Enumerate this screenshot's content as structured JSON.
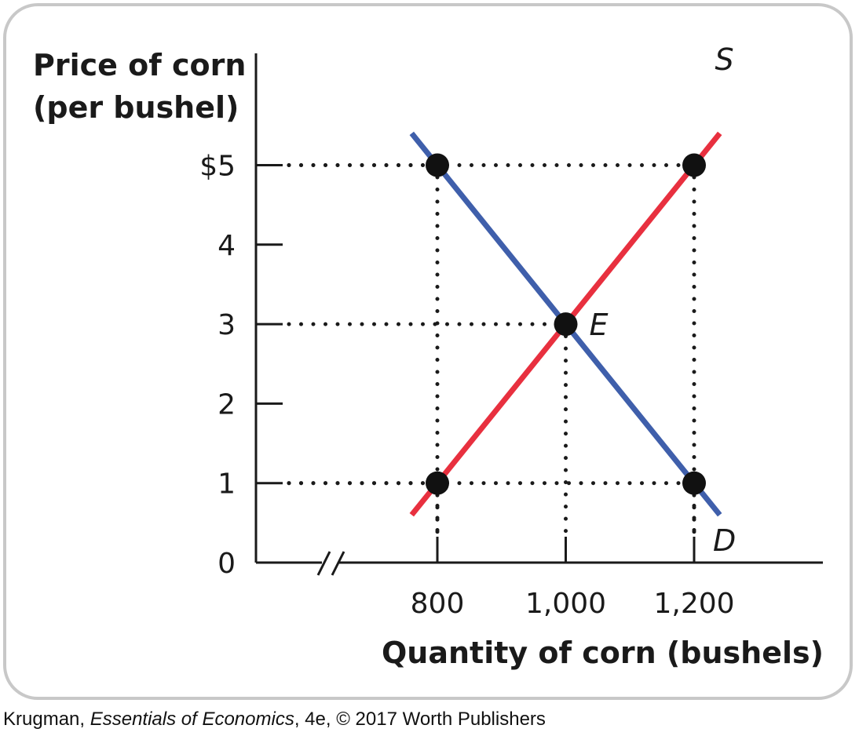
{
  "caption": {
    "author": "Krugman, ",
    "book": "Essentials of Economics",
    "rest": ", 4e, © 2017 Worth Publishers"
  },
  "chart_data": {
    "type": "line",
    "ylabel_line1": "Price of corn",
    "ylabel_line2": "(per bushel)",
    "xlabel": "Quantity of corn (bushels)",
    "y_ticks": [
      {
        "value": 5,
        "label": "$5"
      },
      {
        "value": 4,
        "label": "4"
      },
      {
        "value": 3,
        "label": "3"
      },
      {
        "value": 2,
        "label": "2"
      },
      {
        "value": 1,
        "label": "1"
      },
      {
        "value": 0,
        "label": "0"
      }
    ],
    "x_ticks": [
      {
        "value": 800,
        "label": "800"
      },
      {
        "value": 1000,
        "label": "1,000"
      },
      {
        "value": 1200,
        "label": "1,200"
      }
    ],
    "xlim": [
      800,
      1200
    ],
    "ylim": [
      0,
      5
    ],
    "axis_break": true,
    "series": [
      {
        "name": "S",
        "color": "#e8303f",
        "points": [
          [
            800,
            1
          ],
          [
            1000,
            3
          ],
          [
            1200,
            5
          ]
        ]
      },
      {
        "name": "D",
        "color": "#3f5fab",
        "points": [
          [
            800,
            5
          ],
          [
            1000,
            3
          ],
          [
            1200,
            1
          ]
        ]
      }
    ],
    "marked_points": [
      {
        "x": 800,
        "y": 5
      },
      {
        "x": 1200,
        "y": 5
      },
      {
        "x": 1000,
        "y": 3,
        "label": "E"
      },
      {
        "x": 800,
        "y": 1
      },
      {
        "x": 1200,
        "y": 1
      }
    ]
  }
}
